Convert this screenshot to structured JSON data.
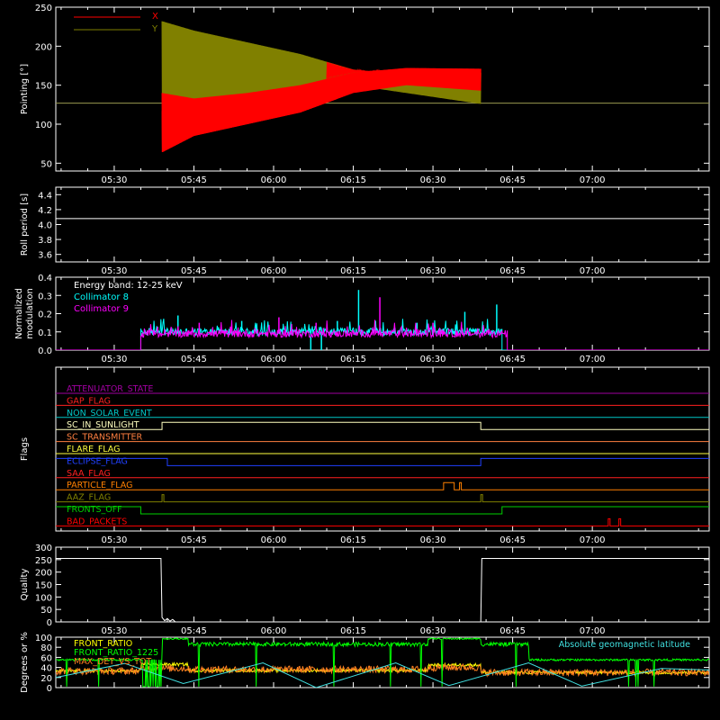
{
  "time_ticks": [
    "05:30",
    "05:45",
    "06:00",
    "06:15",
    "06:30",
    "06:45",
    "07:00"
  ],
  "chart_data": [
    {
      "type": "line",
      "ylabel": "Pointing [°]",
      "xlabel": "",
      "yticks": [
        "50",
        "100",
        "150",
        "200",
        "250"
      ],
      "ylim": [
        40,
        250
      ],
      "xlim": [
        "05:19",
        "07:22"
      ],
      "legend_placement": "top-left",
      "series": [
        {
          "name": "X",
          "color": "#ff0000",
          "band": "oscillating",
          "start": "05:39",
          "end": "06:39",
          "upper": [
            [
              "05:39",
              140
            ],
            [
              "05:45",
              133
            ],
            [
              "05:55",
              140
            ],
            [
              "06:05",
              150
            ],
            [
              "06:15",
              166
            ],
            [
              "06:25",
              172
            ],
            [
              "06:39",
              171
            ]
          ],
          "lower": [
            [
              "05:39",
              64
            ],
            [
              "05:45",
              85
            ],
            [
              "05:55",
              100
            ],
            [
              "06:05",
              115
            ],
            [
              "06:15",
              140
            ],
            [
              "06:25",
              150
            ],
            [
              "06:39",
              143
            ]
          ]
        },
        {
          "name": "Y",
          "color": "#808000",
          "band": "oscillating",
          "start": "05:39",
          "end": "06:39",
          "upper": [
            [
              "05:39",
              232
            ],
            [
              "05:45",
              220
            ],
            [
              "05:55",
              205
            ],
            [
              "06:05",
              190
            ],
            [
              "06:15",
              170
            ],
            [
              "06:25",
              162
            ],
            [
              "06:39",
              166
            ]
          ],
          "lower": [
            [
              "05:39",
              117
            ],
            [
              "05:45",
              123
            ],
            [
              "05:55",
              130
            ],
            [
              "06:05",
              138
            ],
            [
              "06:15",
              150
            ],
            [
              "06:25",
              140
            ],
            [
              "06:39",
              126
            ]
          ]
        },
        {
          "name": "",
          "color": "#9a9a50",
          "points": [
            [
              "05:19",
              127
            ],
            [
              "07:22",
              127
            ]
          ]
        }
      ]
    },
    {
      "type": "line",
      "ylabel": "Roll period [s]",
      "yticks": [
        "3.6",
        "3.8",
        "4.0",
        "4.2",
        "4.4"
      ],
      "ylim": [
        3.5,
        4.5
      ],
      "series": [
        {
          "name": "",
          "color": "#ffffff",
          "points": [
            [
              "05:19",
              4.08
            ],
            [
              "07:22",
              4.08
            ]
          ]
        }
      ]
    },
    {
      "type": "line",
      "ylabel": "Normalized modulation",
      "yticks": [
        "0.0",
        "0.1",
        "0.2",
        "0.3",
        "0.4"
      ],
      "ylim": [
        0,
        0.4
      ],
      "legend_title": "Energy band: 12-25 keV",
      "series": [
        {
          "name": "Collimator 8",
          "color": "#00ffff",
          "baseline": 0.0,
          "active_start": "05:35",
          "active_end": "06:43",
          "active_level": 0.1,
          "spikes": [
            [
              "05:42",
              0.19
            ],
            [
              "05:54",
              0.16
            ],
            [
              "06:07",
              -0.1
            ],
            [
              "06:09",
              -0.1
            ],
            [
              "06:12",
              0.16
            ],
            [
              "06:16",
              0.33
            ],
            [
              "06:27",
              0.15
            ],
            [
              "06:36",
              0.21
            ],
            [
              "06:42",
              0.25
            ]
          ]
        },
        {
          "name": "Collimator 9",
          "color": "#ff00ff",
          "baseline": 0.0,
          "active_start": "05:35",
          "active_end": "06:44",
          "active_level": 0.09,
          "spikes": [
            [
              "05:46",
              0.15
            ],
            [
              "06:01",
              0.18
            ],
            [
              "06:08",
              0.15
            ],
            [
              "06:20",
              0.29
            ],
            [
              "06:30",
              0.15
            ]
          ]
        }
      ]
    },
    {
      "type": "line",
      "ylabel": "Flags",
      "series": [
        {
          "name": "ATTENUATOR_STATE",
          "color": "#a000a0",
          "level": 0,
          "pulses": []
        },
        {
          "name": "GAP_FLAG",
          "color": "#ff2020",
          "level": 0,
          "pulses": []
        },
        {
          "name": "NON_SOLAR_EVENT",
          "color": "#00c8c8",
          "level": 0,
          "pulses": []
        },
        {
          "name": "SC_IN_SUNLIGHT",
          "color": "#ffffc0",
          "level": 0,
          "pulses": [
            [
              "05:39",
              "06:39"
            ]
          ]
        },
        {
          "name": "SC_TRANSMITTER",
          "color": "#ff8040",
          "level": 0,
          "pulses": []
        },
        {
          "name": "FLARE_FLAG",
          "color": "#ffff40",
          "level": 0,
          "pulses": []
        },
        {
          "name": "ECLIPSE_FLAG",
          "color": "#2040ff",
          "level": 1,
          "pulses_low": [
            [
              "05:40",
              "06:39"
            ]
          ]
        },
        {
          "name": "SAA_FLAG",
          "color": "#ff2020",
          "level": 0,
          "pulses": []
        },
        {
          "name": "PARTICLE_FLAG",
          "color": "#ff8000",
          "level": 0,
          "pulses": [
            [
              "06:32",
              "06:34"
            ],
            [
              "06:35",
              "06:35"
            ]
          ]
        },
        {
          "name": "AAZ_FLAG",
          "color": "#808000",
          "level": 0,
          "pulses": [
            [
              "05:39",
              "05:39"
            ],
            [
              "06:39",
              "06:39"
            ]
          ]
        },
        {
          "name": "FRONTS_OFF",
          "color": "#00d000",
          "level": 1,
          "pulses_low": [
            [
              "05:35",
              "06:43"
            ]
          ]
        },
        {
          "name": "BAD_PACKETS",
          "color": "#ff0000",
          "level": 0,
          "pulses": [
            [
              "07:03",
              "07:03"
            ],
            [
              "07:05",
              "07:05"
            ]
          ]
        }
      ]
    },
    {
      "type": "line",
      "ylabel": "Quality",
      "yticks": [
        "0",
        "50",
        "100",
        "150",
        "200",
        "250",
        "300"
      ],
      "ylim": [
        0,
        300
      ],
      "series": [
        {
          "name": "",
          "color": "#ffffff",
          "points": [
            [
              "05:19",
              255
            ],
            [
              "05:38.8",
              255
            ],
            [
              "05:39",
              18
            ],
            [
              "05:39.5",
              5
            ],
            [
              "05:40",
              14
            ],
            [
              "05:40.5",
              3
            ],
            [
              "05:41",
              10
            ],
            [
              "05:41.5",
              0
            ],
            [
              "06:39",
              0
            ],
            [
              "06:39.2",
              255
            ],
            [
              "07:22",
              255
            ]
          ]
        }
      ]
    },
    {
      "type": "line",
      "ylabel": "Degrees or %",
      "yticks": [
        "0",
        "20",
        "40",
        "60",
        "80",
        "100"
      ],
      "ylim": [
        0,
        100
      ],
      "legend_placement": "top-left",
      "series": [
        {
          "name": "FRONT_RATIO",
          "color": "#ffff00"
        },
        {
          "name": "FRONT_RATIO_1225",
          "color": "#00ff00"
        },
        {
          "name": "MAX_DET_VS_TOT",
          "color": "#ff8020"
        },
        {
          "name": "Absolute geomagnetic latitude",
          "color": "#40e0e0",
          "points": [
            [
              "05:19",
              20
            ],
            [
              "05:32",
              48
            ],
            [
              "05:43",
              8
            ],
            [
              "05:58",
              49
            ],
            [
              "06:08",
              0
            ],
            [
              "06:23",
              49
            ],
            [
              "06:33",
              4
            ],
            [
              "06:48",
              49
            ],
            [
              "06:58",
              3
            ],
            [
              "07:13",
              38
            ],
            [
              "07:22",
              35
            ]
          ]
        }
      ]
    }
  ]
}
